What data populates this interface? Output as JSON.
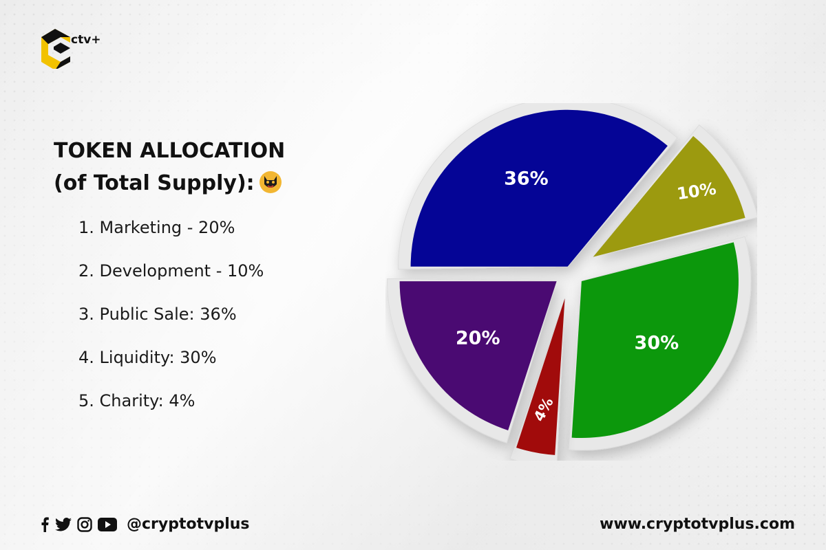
{
  "brand": {
    "logo_text": "ctv+",
    "accent_color": "#f2c200"
  },
  "header": {
    "title_line1": "TOKEN ALLOCATION",
    "title_line2": "(of Total Supply):",
    "mascot_icon": "panther-icon"
  },
  "allocation_list": [
    "1. Marketing - 20%",
    "2. Development - 10%",
    "3. Public Sale: 36%",
    "4. Liquidity: 30%",
    "5. Charity: 4%"
  ],
  "chart_data": {
    "type": "pie",
    "slices": [
      {
        "label": "36%",
        "value": 36,
        "color": "#050596"
      },
      {
        "label": "10%",
        "value": 10,
        "color": "#9c9a0f"
      },
      {
        "label": "30%",
        "value": 30,
        "color": "#0c980c"
      },
      {
        "label": "4%",
        "value": 4,
        "color": "#a10b0b"
      },
      {
        "label": "20%",
        "value": 20,
        "color": "#4a0a72"
      }
    ]
  },
  "footer": {
    "social_icons": [
      "facebook-icon",
      "twitter-icon",
      "instagram-icon",
      "youtube-icon"
    ],
    "handle": "@cryptotvplus",
    "website": "www.cryptotvplus.com"
  }
}
